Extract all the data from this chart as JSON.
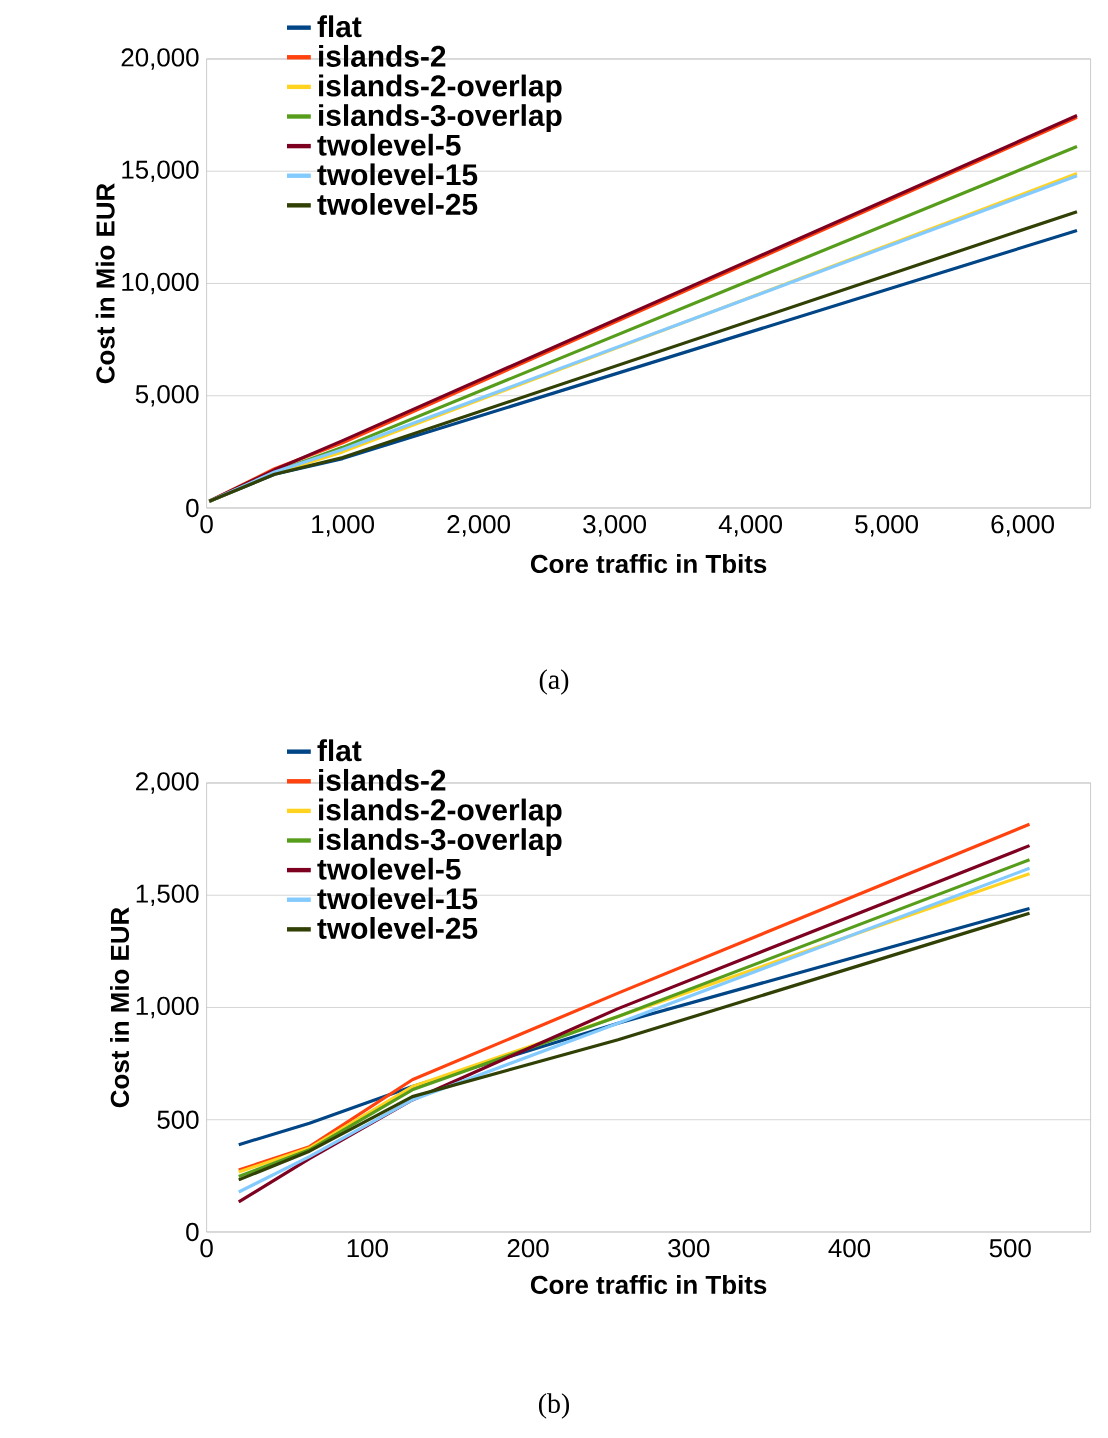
{
  "chart_data": [
    {
      "type": "line",
      "xlabel": "Core traffic in Tbits",
      "ylabel": "Cost in Mio EUR",
      "annotations": [
        "(a)"
      ],
      "x": [
        20,
        500,
        1000,
        6400
      ],
      "series": [
        {
          "name": "flat",
          "color": "#004586",
          "values": [
            300,
            1500,
            2200,
            12360
          ]
        },
        {
          "name": "islands-2",
          "color": "#ff420e",
          "values": [
            300,
            1750,
            2900,
            17400
          ]
        },
        {
          "name": "islands-2-overlap",
          "color": "#ffd320",
          "values": [
            300,
            1550,
            2500,
            14900
          ]
        },
        {
          "name": "islands-3-overlap",
          "color": "#579d1c",
          "values": [
            300,
            1600,
            2700,
            16100
          ]
        },
        {
          "name": "twolevel-5",
          "color": "#7e0021",
          "values": [
            300,
            1700,
            3000,
            17480
          ]
        },
        {
          "name": "twolevel-15",
          "color": "#83caff",
          "values": [
            300,
            1600,
            2600,
            14800
          ]
        },
        {
          "name": "twolevel-25",
          "color": "#314004",
          "values": [
            300,
            1500,
            2250,
            13200
          ]
        }
      ],
      "xlim": [
        0,
        6500
      ],
      "ylim": [
        0,
        20000
      ],
      "xticks": [
        0,
        {
          "value": 1000,
          "label": "1,000"
        },
        {
          "value": 2000,
          "label": "2,000"
        },
        {
          "value": 3000,
          "label": "3,000"
        },
        {
          "value": 4000,
          "label": "4,000"
        },
        {
          "value": 5000,
          "label": "5,000"
        },
        {
          "value": 6000,
          "label": "6,000"
        }
      ],
      "yticks": [
        0,
        {
          "value": 5000,
          "label": "5,000"
        },
        {
          "value": 10000,
          "label": "10,000"
        },
        {
          "value": 15000,
          "label": "15,000"
        },
        {
          "value": 20000,
          "label": "20,000"
        }
      ],
      "grid": "y",
      "legend": "top left"
    },
    {
      "type": "line",
      "xlabel": "Core traffic in Tbits",
      "ylabel": "Cost in Mio EUR",
      "annotations": [
        "(b)"
      ],
      "x": [
        20,
        64,
        128,
        256,
        512
      ],
      "series": [
        {
          "name": "flat",
          "color": "#004586",
          "values": [
            389,
            484,
            648,
            930,
            1441
          ]
        },
        {
          "name": "islands-2",
          "color": "#ff420e",
          "values": [
            276,
            380,
            678,
            1064,
            1816
          ]
        },
        {
          "name": "islands-2-overlap",
          "color": "#ffd320",
          "values": [
            267,
            374,
            648,
            960,
            1596
          ]
        },
        {
          "name": "islands-3-overlap",
          "color": "#579d1c",
          "values": [
            247,
            366,
            633,
            960,
            1658
          ]
        },
        {
          "name": "twolevel-5",
          "color": "#7e0021",
          "values": [
            134,
            327,
            588,
            995,
            1721
          ]
        },
        {
          "name": "twolevel-15",
          "color": "#83caff",
          "values": [
            178,
            336,
            588,
            930,
            1620
          ]
        },
        {
          "name": "twolevel-25",
          "color": "#314004",
          "values": [
            232,
            360,
            603,
            856,
            1420
          ]
        }
      ],
      "xlim": [
        0,
        550
      ],
      "ylim": [
        0,
        2000
      ],
      "xticks": [
        0,
        100,
        200,
        300,
        400,
        500
      ],
      "yticks": [
        0,
        500,
        {
          "value": 1000,
          "label": "1,000"
        },
        {
          "value": 1500,
          "label": "1,500"
        },
        {
          "value": 2000,
          "label": "2,000"
        }
      ],
      "grid": "y",
      "legend": "top left"
    }
  ]
}
